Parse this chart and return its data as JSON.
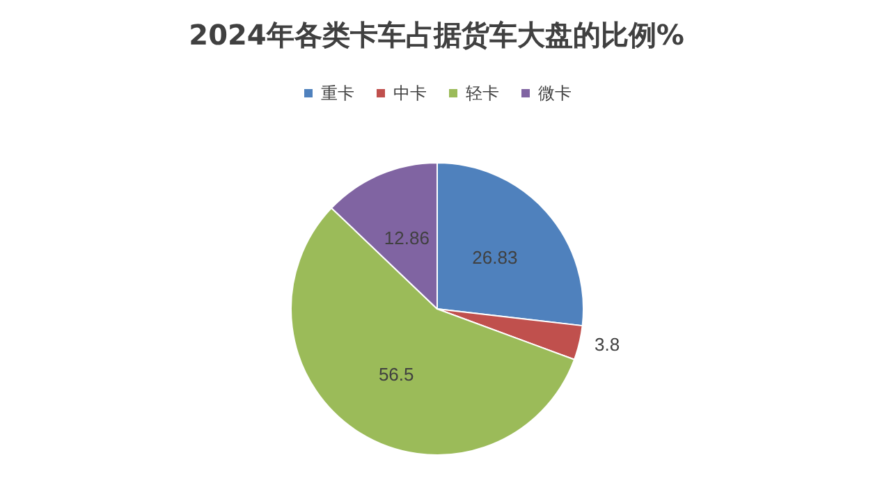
{
  "chart_data": {
    "type": "pie",
    "title": "2024年各类卡车占据货车大盘的比例%",
    "categories": [
      "重卡",
      "中卡",
      "轻卡",
      "微卡"
    ],
    "values": [
      26.83,
      3.8,
      56.5,
      12.86
    ],
    "colors": [
      "#4f81bd",
      "#c0504d",
      "#9bbb59",
      "#8064a2"
    ],
    "data_labels": true,
    "legend": "top"
  }
}
